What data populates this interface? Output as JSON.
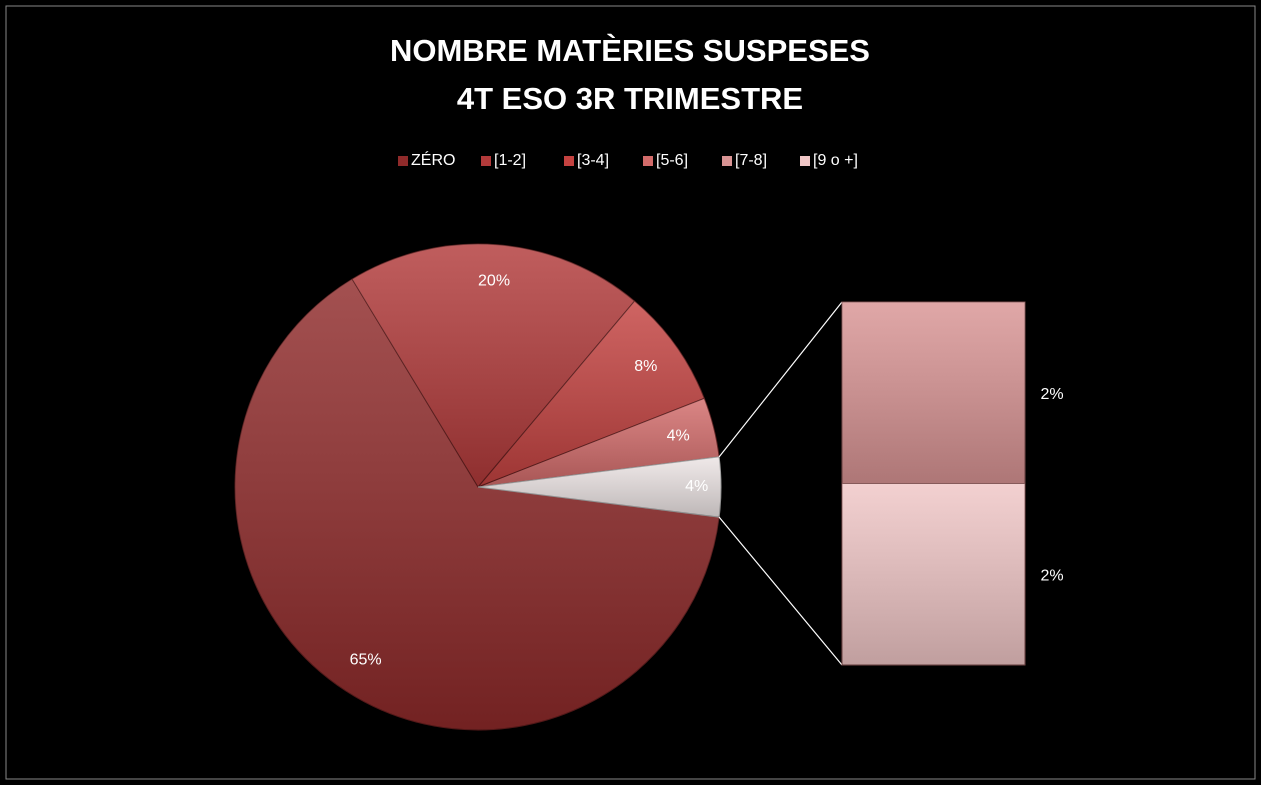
{
  "chart_data": {
    "type": "bar-of-pie",
    "title": [
      "NOMBRE  MATÈRIES SUSPESES",
      "4T  ESO  3R  TRIMESTRE"
    ],
    "categories": [
      "ZÉRO",
      "[1-2]",
      "[3-4]",
      "[5-6]",
      "[7-8]",
      "[9 o +]"
    ],
    "values": [
      65,
      20,
      8,
      4,
      2,
      2
    ],
    "value_labels": [
      "65%",
      "20%",
      "8%",
      "4%",
      "2%",
      "2%"
    ],
    "colors": [
      "#8f2a2a",
      "#b23a3a",
      "#c44240",
      "#d26b6a",
      "#d99494",
      "#f0c6c6"
    ],
    "other_label": "4%",
    "other_color": "#ece4e4",
    "legend": "top"
  }
}
